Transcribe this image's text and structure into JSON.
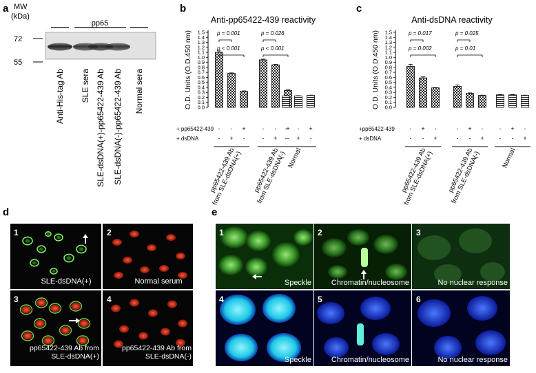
{
  "panel_a": {
    "label": "a",
    "mw_label": "MW",
    "kda_label": "(kDa)",
    "mw_72": "72",
    "mw_55": "55",
    "group_label": "pp65",
    "lanes": [
      "Anti-His-tag Ab",
      "SLE sera",
      "SLE-dsDNA(+)-pp65422-439 Ab",
      "SLE-dsDNA(-)-pp65422-439 Ab",
      "Normal sera"
    ],
    "band_intensity": [
      0.95,
      0.85,
      0.9,
      0.85,
      0.0
    ]
  },
  "panel_b": {
    "label": "b"
  },
  "panel_c": {
    "label": "c"
  },
  "chart_data": [
    {
      "type": "bar",
      "title": "Anti-pp65422-439 reactivity",
      "ylabel": "O.D. Units (O.D.450 nm)",
      "ylim": [
        0,
        1.5
      ],
      "yticks": [
        "0.0",
        "0.1",
        "0.2",
        "0.3",
        "0.4",
        "0.5",
        "0.6",
        "0.7",
        "0.8",
        "0.9",
        "1.0",
        "1.1",
        "1.2",
        "1.3",
        "1.4",
        "1.5"
      ],
      "row_labels": [
        "+ pp65422-439",
        "+ dsDNA"
      ],
      "row_signs": [
        [
          "-",
          "-",
          "+",
          "-",
          "-",
          "+",
          "-",
          "-",
          "+"
        ],
        [
          "-",
          "+",
          "-",
          "-",
          "+",
          "-",
          "-",
          "+",
          "-"
        ]
      ],
      "groups": [
        {
          "name": "pp65422-439 Ab from SLE-dsDNA(+)",
          "values": [
            1.1,
            0.68,
            0.32
          ],
          "errors": [
            0.03,
            0.01,
            0.01
          ],
          "pattern": "check"
        },
        {
          "name": "pp65422-439 Ab from SLE-dsDNA(-)",
          "values": [
            0.95,
            0.85,
            0.34
          ],
          "errors": [
            0.015,
            0.01,
            0.01
          ],
          "pattern": "check"
        },
        {
          "name": "Normal",
          "values": [
            0.23,
            0.23,
            0.24
          ],
          "errors": [
            0.005,
            0.005,
            0.005
          ],
          "pattern": "stripe"
        }
      ],
      "pvalues": [
        {
          "text": "p = 0.001",
          "group": 0,
          "from": 0,
          "to": 1
        },
        {
          "text": "p < 0.001",
          "group": 0,
          "from": 0,
          "to": 2
        },
        {
          "text": "p = 0.026",
          "group": 1,
          "from": 0,
          "to": 1
        },
        {
          "text": "p < 0.001",
          "group": 1,
          "from": 0,
          "to": 2
        }
      ]
    },
    {
      "type": "bar",
      "title": "Anti-dsDNA reactivity",
      "ylabel": "O.D. Units (O.D.450 nm)",
      "ylim": [
        0,
        1.5
      ],
      "yticks": [
        "0.0",
        "0.1",
        "0.2",
        "0.3",
        "0.4",
        "0.5",
        "0.6",
        "0.7",
        "0.8",
        "0.9",
        "1.0",
        "1.1",
        "1.2",
        "1.3",
        "1.4",
        "1.5"
      ],
      "row_labels": [
        "+pp65422-439",
        "+ dsDNA"
      ],
      "row_signs": [
        [
          "-",
          "+",
          "-",
          "-",
          "+",
          "-",
          "-",
          "+",
          "-"
        ],
        [
          "-",
          "-",
          "+",
          "-",
          "-",
          "+",
          "-",
          "-",
          "+"
        ]
      ],
      "groups": [
        {
          "name": "pp65422-439 Ab from SLE-dsDNA(+)",
          "values": [
            0.82,
            0.59,
            0.39
          ],
          "errors": [
            0.04,
            0.02,
            0.005
          ],
          "pattern": "check"
        },
        {
          "name": "pp65422-439 Ab from SLE-dsDNA(-)",
          "values": [
            0.42,
            0.28,
            0.24
          ],
          "errors": [
            0.03,
            0.01,
            0.005
          ],
          "pattern": "check"
        },
        {
          "name": "Normal",
          "values": [
            0.25,
            0.25,
            0.24
          ],
          "errors": [
            0.005,
            0.005,
            0.005
          ],
          "pattern": "stripe"
        }
      ],
      "pvalues": [
        {
          "text": "p = 0.017",
          "group": 0,
          "from": 0,
          "to": 1
        },
        {
          "text": "p = 0.002",
          "group": 0,
          "from": 0,
          "to": 2
        },
        {
          "text": "p = 0.025",
          "group": 1,
          "from": 0,
          "to": 1
        },
        {
          "text": "p = 0.01",
          "group": 1,
          "from": 0,
          "to": 2
        }
      ]
    }
  ],
  "panel_d": {
    "label": "d",
    "tiles": [
      {
        "num": "1",
        "caption": "SLE-dsDNA(+)"
      },
      {
        "num": "2",
        "caption": "Normal serum"
      },
      {
        "num": "3",
        "caption": "pp65422-439 Ab from SLE-dsDNA(+)"
      },
      {
        "num": "4",
        "caption": "pp65422-439 Ab from SLE-dsDNA(-)"
      }
    ]
  },
  "panel_e": {
    "label": "e",
    "tiles": [
      {
        "num": "1",
        "caption": "Speckle"
      },
      {
        "num": "2",
        "caption": "Chromatin/nucleosome"
      },
      {
        "num": "3",
        "caption": "No nuclear response"
      },
      {
        "num": "4",
        "caption": "Speckle"
      },
      {
        "num": "5",
        "caption": "Chromatin/nucleosome"
      },
      {
        "num": "6",
        "caption": "No nuclear response"
      }
    ]
  }
}
